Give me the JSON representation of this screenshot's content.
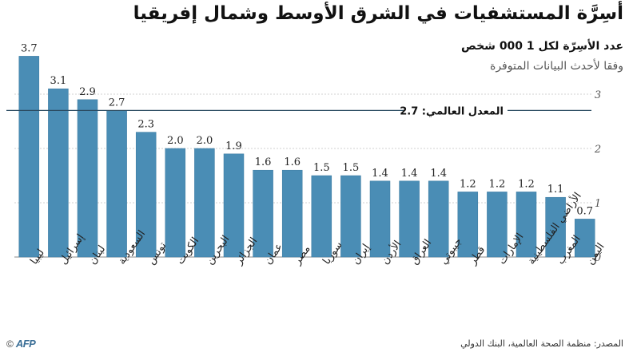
{
  "header": {
    "title": "أسِرَّة المستشفيات في الشرق الأوسط وشمال إفريقيا",
    "subtitle": "عدد الأسِرّة لكل 1 000 شخص",
    "note": "وفقا لأحدث البيانات المتوفرة"
  },
  "footer": {
    "source": "المصدر: منظمة الصحة العالمية، البنك الدولي",
    "logo_copy": "©",
    "logo_text": "AFP"
  },
  "colors": {
    "bar": "#4a8db5",
    "bar_stroke": "#3b7aa0",
    "gridline": "#d0d0d0",
    "average_line": "#2a4a60"
  },
  "chart_data": {
    "type": "bar",
    "categories": [
      "ليبيا",
      "إسرائيل",
      "لبنان",
      "السعودية",
      "تونس",
      "الكويت",
      "البحرين",
      "الجزائر",
      "عمان",
      "مصر",
      "سوريا",
      "إيران",
      "الأردن",
      "العراق",
      "جيبوتي",
      "قطر",
      "الإمارات",
      "الأراضي الفلسطينية",
      "المغرب",
      "اليمن"
    ],
    "values": [
      3.7,
      3.1,
      2.9,
      2.7,
      2.3,
      2.0,
      2.0,
      1.9,
      1.6,
      1.6,
      1.5,
      1.5,
      1.4,
      1.4,
      1.4,
      1.2,
      1.2,
      1.2,
      1.1,
      0.7
    ],
    "value_labels": [
      "3.7",
      "3.1",
      "2.9",
      "2.7",
      "2.3",
      "2.0",
      "2.0",
      "1.9",
      "1.6",
      "1.6",
      "1.5",
      "1.5",
      "1.4",
      "1.4",
      "1.4",
      "1.2",
      "1.2",
      "1.2",
      "1.1",
      "0.7"
    ],
    "ylim": [
      0,
      3.7
    ],
    "yticks": [
      0,
      1,
      2,
      3
    ],
    "y_axis_position": "right",
    "grid": true,
    "reference_line": {
      "value": 2.7,
      "label": "المعدل العالمي: 2.7"
    }
  }
}
